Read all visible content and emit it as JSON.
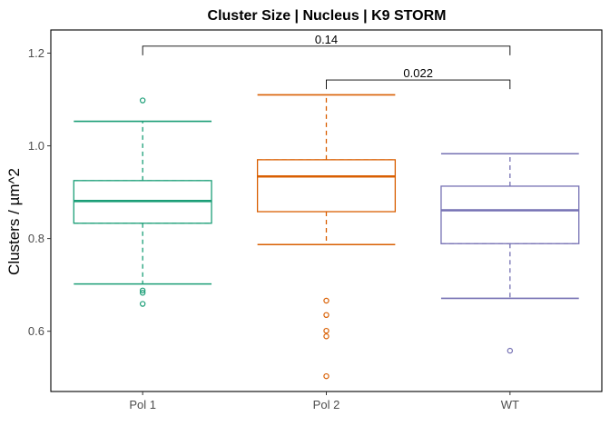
{
  "chart_data": {
    "type": "box",
    "title": "Cluster Size | Nucleus | K9 STORM",
    "xlabel": "",
    "ylabel": "Clusters / µm^2",
    "ylim": [
      0.47,
      1.25
    ],
    "yticks": [
      0.6,
      0.8,
      1.0,
      1.2
    ],
    "ytick_labels": [
      "0.6",
      "0.8",
      "1.0",
      "1.2"
    ],
    "grid": false,
    "categories": [
      "Pol 1",
      "Pol 2",
      "WT"
    ],
    "colors": {
      "Pol 1": "#1b9e77",
      "Pol 2": "#d95f02",
      "WT": "#7570b3"
    },
    "series": [
      {
        "category": "Pol 1",
        "whisker_low": 0.702,
        "q1": 0.833,
        "median": 0.881,
        "q3": 0.925,
        "whisker_high": 1.053,
        "outliers": [
          1.098,
          0.688,
          0.683,
          0.659
        ]
      },
      {
        "category": "Pol 2",
        "whisker_low": 0.787,
        "q1": 0.858,
        "median": 0.934,
        "q3": 0.97,
        "whisker_high": 1.11,
        "outliers": [
          0.666,
          0.635,
          0.601,
          0.589,
          0.503
        ]
      },
      {
        "category": "WT",
        "whisker_low": 0.671,
        "q1": 0.789,
        "median": 0.861,
        "q3": 0.913,
        "whisker_high": 0.983,
        "outliers": [
          0.558
        ]
      }
    ],
    "comparisons": [
      {
        "from": "Pol 1",
        "to": "WT",
        "label": "0.14",
        "y": 1.215
      },
      {
        "from": "Pol 2",
        "to": "WT",
        "label": "0.022",
        "y": 1.142
      }
    ]
  }
}
